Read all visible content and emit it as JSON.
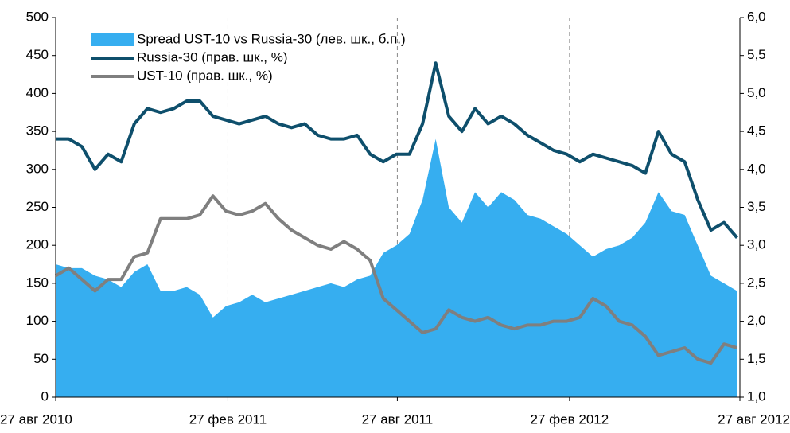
{
  "chart_data": {
    "type": "area-line",
    "x": [
      "2010-08-27",
      "2010-09-10",
      "2010-09-24",
      "2010-10-08",
      "2010-10-22",
      "2010-11-05",
      "2010-11-19",
      "2010-12-03",
      "2010-12-17",
      "2010-12-31",
      "2011-01-14",
      "2011-01-28",
      "2011-02-11",
      "2011-02-25",
      "2011-03-11",
      "2011-03-25",
      "2011-04-08",
      "2011-04-22",
      "2011-05-06",
      "2011-05-20",
      "2011-06-03",
      "2011-06-17",
      "2011-07-01",
      "2011-07-15",
      "2011-07-29",
      "2011-08-12",
      "2011-08-26",
      "2011-09-09",
      "2011-09-23",
      "2011-10-07",
      "2011-10-21",
      "2011-11-04",
      "2011-11-18",
      "2011-12-02",
      "2011-12-16",
      "2011-12-30",
      "2012-01-13",
      "2012-01-27",
      "2012-02-10",
      "2012-02-24",
      "2012-03-09",
      "2012-03-23",
      "2012-04-06",
      "2012-04-20",
      "2012-05-04",
      "2012-05-18",
      "2012-06-01",
      "2012-06-15",
      "2012-06-29",
      "2012-07-13",
      "2012-07-27",
      "2012-08-10",
      "2012-08-24"
    ],
    "series": [
      {
        "name": "Spread UST-10 vs Russia-30 (лев. шк., б.п.)",
        "color": "#36aef0",
        "kind": "area",
        "values": [
          175,
          170,
          170,
          160,
          155,
          145,
          165,
          175,
          140,
          140,
          145,
          135,
          105,
          120,
          125,
          135,
          125,
          130,
          135,
          140,
          145,
          150,
          145,
          155,
          160,
          190,
          200,
          215,
          260,
          340,
          250,
          230,
          270,
          250,
          270,
          260,
          240,
          235,
          225,
          215,
          200,
          185,
          195,
          200,
          210,
          230,
          270,
          245,
          240,
          200,
          160,
          150,
          140
        ]
      },
      {
        "name": "Russia-30 (прав. шк., %)",
        "color": "#0e4f6c",
        "kind": "line",
        "axis": "y2",
        "values": [
          4.4,
          4.4,
          4.3,
          4.0,
          4.2,
          4.1,
          4.6,
          4.8,
          4.75,
          4.8,
          4.9,
          4.9,
          4.7,
          4.65,
          4.6,
          4.65,
          4.7,
          4.6,
          4.55,
          4.6,
          4.45,
          4.4,
          4.4,
          4.45,
          4.2,
          4.1,
          4.2,
          4.2,
          4.6,
          5.4,
          4.7,
          4.5,
          4.8,
          4.6,
          4.7,
          4.6,
          4.45,
          4.35,
          4.25,
          4.2,
          4.1,
          4.2,
          4.15,
          4.1,
          4.05,
          3.95,
          4.5,
          4.2,
          4.1,
          3.6,
          3.2,
          3.3,
          3.1
        ]
      },
      {
        "name": "UST-10 (прав. шк., %)",
        "color": "#7f7f7f",
        "kind": "line",
        "axis": "y2",
        "values": [
          2.6,
          2.7,
          2.55,
          2.4,
          2.55,
          2.55,
          2.85,
          2.9,
          3.35,
          3.35,
          3.35,
          3.4,
          3.65,
          3.45,
          3.4,
          3.45,
          3.55,
          3.35,
          3.2,
          3.1,
          3.0,
          2.95,
          3.05,
          2.95,
          2.8,
          2.3,
          2.15,
          2.0,
          1.85,
          1.9,
          2.15,
          2.05,
          2.0,
          2.05,
          1.95,
          1.9,
          1.95,
          1.95,
          2.0,
          2.0,
          2.05,
          2.3,
          2.2,
          2.0,
          1.95,
          1.8,
          1.55,
          1.6,
          1.65,
          1.5,
          1.45,
          1.7,
          1.65
        ]
      }
    ],
    "xlim": [
      "2010-08-27",
      "2012-08-27"
    ],
    "xticks": [
      {
        "value": "2010-08-27",
        "label": "27 авг 2010"
      },
      {
        "value": "2011-02-27",
        "label": "27 фев 2011"
      },
      {
        "value": "2011-08-27",
        "label": "27 авг 2011"
      },
      {
        "value": "2012-02-27",
        "label": "27 фев 2012"
      },
      {
        "value": "2012-08-27",
        "label": "27 авг 2012"
      }
    ],
    "ylim": [
      0,
      500
    ],
    "yticks": [
      0,
      50,
      100,
      150,
      200,
      250,
      300,
      350,
      400,
      450,
      500
    ],
    "y2lim": [
      1,
      6
    ],
    "y2ticks": [
      {
        "value": 1,
        "label": "1,0"
      },
      {
        "value": 1.5,
        "label": "1,5"
      },
      {
        "value": 2,
        "label": "2,0"
      },
      {
        "value": 2.5,
        "label": "2,5"
      },
      {
        "value": 3,
        "label": "3,0"
      },
      {
        "value": 3.5,
        "label": "3,5"
      },
      {
        "value": 4,
        "label": "4,0"
      },
      {
        "value": 4.5,
        "label": "4,5"
      },
      {
        "value": 5,
        "label": "5,0"
      },
      {
        "value": 5.5,
        "label": "5,5"
      },
      {
        "value": 6,
        "label": "6,0"
      }
    ],
    "grid": "x",
    "legend": "top-left"
  }
}
